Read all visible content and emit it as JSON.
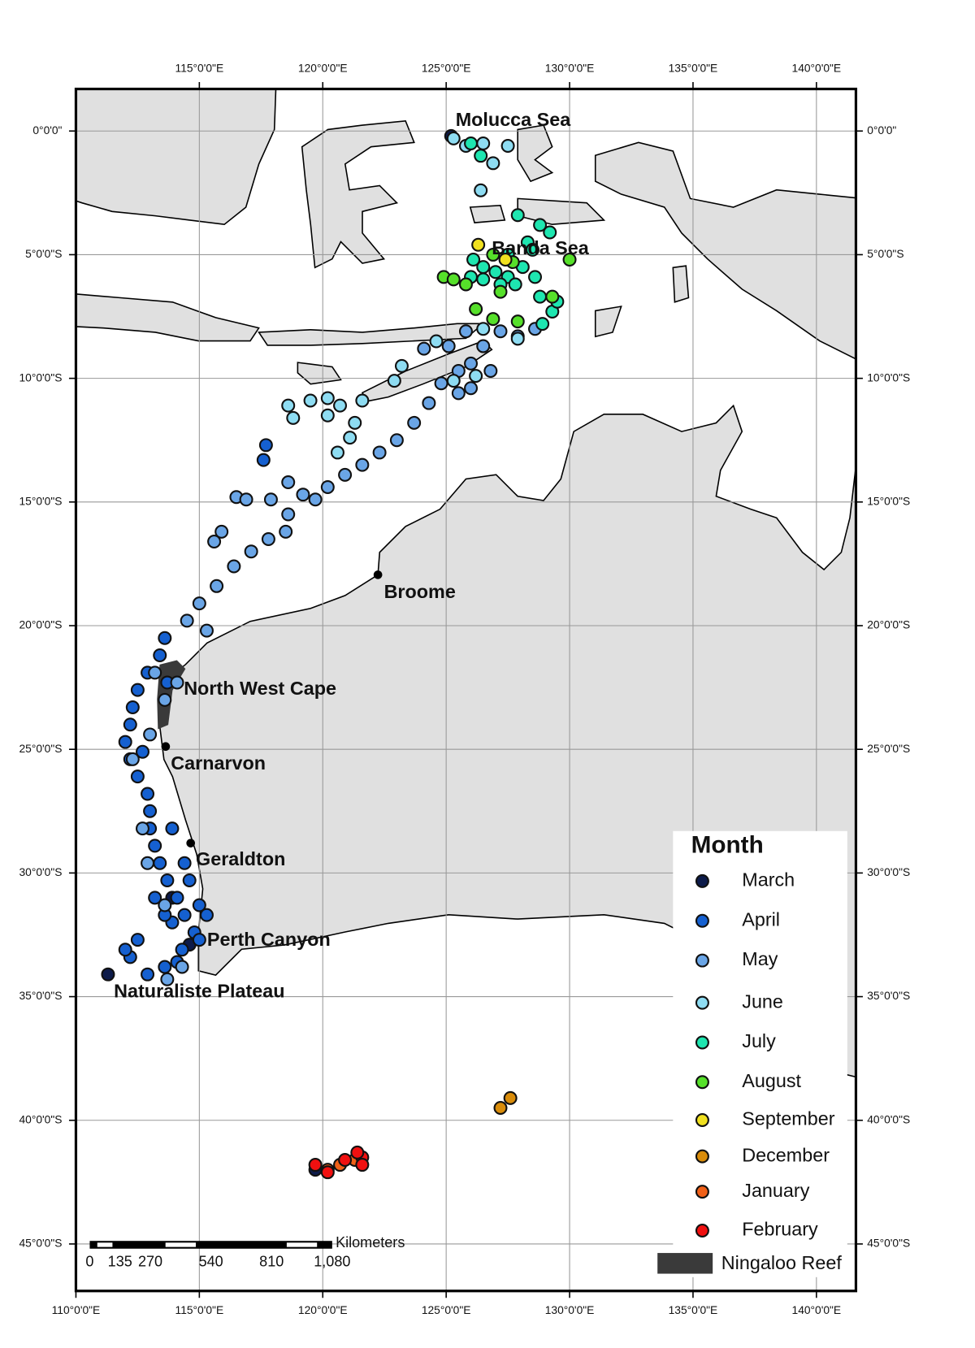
{
  "map": {
    "lon_range": [
      110,
      141.6
    ],
    "lat_range": [
      -46.9,
      1.7
    ],
    "lon_ticks": [
      {
        "value": 110,
        "label": "110°0'0\"E"
      },
      {
        "value": 115,
        "label": "115°0'0\"E"
      },
      {
        "value": 120,
        "label": "120°0'0\"E"
      },
      {
        "value": 125,
        "label": "125°0'0\"E"
      },
      {
        "value": 130,
        "label": "130°0'0\"E"
      },
      {
        "value": 135,
        "label": "135°0'0\"E"
      },
      {
        "value": 140,
        "label": "140°0'0\"E"
      }
    ],
    "lat_ticks": [
      {
        "value": 0,
        "label": "0°0'0\""
      },
      {
        "value": -5,
        "label": "5°0'0\"S"
      },
      {
        "value": -10,
        "label": "10°0'0\"S"
      },
      {
        "value": -15,
        "label": "15°0'0\"S"
      },
      {
        "value": -20,
        "label": "20°0'0\"S"
      },
      {
        "value": -25,
        "label": "25°0'0\"S"
      },
      {
        "value": -30,
        "label": "30°0'0\"S"
      },
      {
        "value": -35,
        "label": "35°0'0\"S"
      },
      {
        "value": -40,
        "label": "40°0'0\"S"
      },
      {
        "value": -45,
        "label": "45°0'0\"S"
      }
    ],
    "places": [
      "Molucca Sea",
      "Banda Sea",
      "Broome",
      "North West Cape",
      "Carnarvon",
      "Geraldton",
      "Perth Canyon",
      "Naturaliste Plateau"
    ],
    "scale_bar": {
      "unit": "Kilometers",
      "ticks": [
        {
          "value": 0,
          "label": "0"
        },
        {
          "value": 135,
          "label": "135"
        },
        {
          "value": 270,
          "label": "270"
        },
        {
          "value": 540,
          "label": "540"
        },
        {
          "value": 810,
          "label": "810"
        },
        {
          "value": 1080,
          "label": "1,080"
        }
      ]
    },
    "legend": {
      "title": "Month",
      "reef_label": "Ningaloo Reef"
    },
    "series": [
      {
        "name": "March",
        "color": "#0d1b4a",
        "points": [
          [
            111.3,
            -34.1
          ],
          [
            125.2,
            -0.2
          ],
          [
            113.9,
            -31.0
          ],
          [
            119.7,
            -42.0
          ],
          [
            114.6,
            -32.9
          ]
        ]
      },
      {
        "name": "April",
        "color": "#1560d0",
        "points": [
          [
            113.6,
            -20.5
          ],
          [
            113.4,
            -21.2
          ],
          [
            112.9,
            -21.9
          ],
          [
            112.5,
            -22.6
          ],
          [
            112.3,
            -23.3
          ],
          [
            112.2,
            -24.0
          ],
          [
            112.0,
            -24.7
          ],
          [
            112.2,
            -25.4
          ],
          [
            112.5,
            -26.1
          ],
          [
            112.9,
            -26.8
          ],
          [
            113.0,
            -27.5
          ],
          [
            113.0,
            -28.2
          ],
          [
            113.2,
            -28.9
          ],
          [
            113.4,
            -29.6
          ],
          [
            113.7,
            -30.3
          ],
          [
            114.1,
            -31.0
          ],
          [
            114.4,
            -31.7
          ],
          [
            114.8,
            -32.4
          ],
          [
            114.3,
            -33.1
          ],
          [
            113.6,
            -33.8
          ],
          [
            112.9,
            -34.1
          ],
          [
            112.2,
            -33.4
          ],
          [
            112.5,
            -32.7
          ],
          [
            113.9,
            -32.0
          ],
          [
            115.0,
            -31.3
          ],
          [
            115.3,
            -31.7
          ],
          [
            113.9,
            -28.2
          ],
          [
            114.4,
            -29.6
          ],
          [
            117.6,
            -13.3
          ],
          [
            117.7,
            -12.7
          ],
          [
            113.7,
            -22.3
          ],
          [
            112.7,
            -25.1
          ],
          [
            114.1,
            -33.6
          ],
          [
            112.0,
            -33.1
          ],
          [
            114.6,
            -30.3
          ],
          [
            115.0,
            -32.7
          ],
          [
            113.2,
            -31.0
          ],
          [
            113.6,
            -31.7
          ]
        ]
      },
      {
        "name": "May",
        "color": "#6aa5e6",
        "points": [
          [
            114.5,
            -19.8
          ],
          [
            115.0,
            -19.1
          ],
          [
            115.7,
            -18.4
          ],
          [
            116.4,
            -17.6
          ],
          [
            117.1,
            -17.0
          ],
          [
            117.8,
            -16.5
          ],
          [
            118.5,
            -16.2
          ],
          [
            115.9,
            -16.2
          ],
          [
            115.6,
            -16.6
          ],
          [
            116.5,
            -14.8
          ],
          [
            116.9,
            -14.9
          ],
          [
            117.9,
            -14.9
          ],
          [
            118.6,
            -15.5
          ],
          [
            114.1,
            -22.3
          ],
          [
            113.6,
            -23.0
          ],
          [
            113.0,
            -24.4
          ],
          [
            112.3,
            -25.4
          ],
          [
            112.7,
            -28.2
          ],
          [
            112.9,
            -29.6
          ],
          [
            113.6,
            -31.3
          ],
          [
            114.3,
            -33.8
          ],
          [
            113.7,
            -34.3
          ],
          [
            115.3,
            -20.2
          ],
          [
            113.2,
            -21.9
          ],
          [
            118.6,
            -14.2
          ],
          [
            119.2,
            -14.7
          ],
          [
            119.7,
            -14.9
          ],
          [
            120.2,
            -14.4
          ],
          [
            120.9,
            -13.9
          ],
          [
            121.6,
            -13.5
          ],
          [
            122.3,
            -13.0
          ],
          [
            123.0,
            -12.5
          ],
          [
            123.7,
            -11.8
          ],
          [
            124.3,
            -11.0
          ],
          [
            124.8,
            -10.2
          ],
          [
            125.5,
            -9.7
          ],
          [
            126.0,
            -9.4
          ],
          [
            126.5,
            -8.7
          ],
          [
            127.2,
            -8.1
          ],
          [
            127.9,
            -8.3
          ],
          [
            126.0,
            -10.4
          ],
          [
            125.5,
            -10.6
          ],
          [
            126.8,
            -9.7
          ],
          [
            125.1,
            -8.7
          ],
          [
            124.1,
            -8.8
          ],
          [
            125.8,
            -8.1
          ],
          [
            128.6,
            -8.0
          ]
        ]
      },
      {
        "name": "June",
        "color": "#8edcf2",
        "points": [
          [
            118.6,
            -11.1
          ],
          [
            118.8,
            -11.6
          ],
          [
            119.5,
            -10.9
          ],
          [
            120.2,
            -10.8
          ],
          [
            120.7,
            -11.1
          ],
          [
            121.3,
            -11.8
          ],
          [
            121.1,
            -12.4
          ],
          [
            120.6,
            -13.0
          ],
          [
            121.6,
            -10.9
          ],
          [
            122.9,
            -10.1
          ],
          [
            123.2,
            -9.5
          ],
          [
            124.6,
            -8.5
          ],
          [
            125.3,
            -0.3
          ],
          [
            125.8,
            -0.6
          ],
          [
            126.5,
            -0.5
          ],
          [
            126.9,
            -1.3
          ],
          [
            126.4,
            -2.4
          ],
          [
            127.5,
            -0.6
          ],
          [
            126.2,
            -9.9
          ],
          [
            125.3,
            -10.1
          ],
          [
            126.5,
            -8.0
          ],
          [
            127.9,
            -8.4
          ],
          [
            120.2,
            -11.5
          ]
        ]
      },
      {
        "name": "July",
        "color": "#1ee6b0",
        "points": [
          [
            126.0,
            -0.5
          ],
          [
            126.4,
            -1.0
          ],
          [
            127.9,
            -3.4
          ],
          [
            128.8,
            -3.8
          ],
          [
            129.2,
            -4.1
          ],
          [
            128.3,
            -4.5
          ],
          [
            127.5,
            -5.0
          ],
          [
            126.1,
            -5.2
          ],
          [
            126.5,
            -5.5
          ],
          [
            127.0,
            -5.7
          ],
          [
            127.5,
            -5.9
          ],
          [
            128.1,
            -5.5
          ],
          [
            128.6,
            -5.9
          ],
          [
            127.8,
            -6.2
          ],
          [
            127.2,
            -6.2
          ],
          [
            126.5,
            -6.0
          ],
          [
            128.8,
            -6.7
          ],
          [
            129.3,
            -7.3
          ],
          [
            128.9,
            -7.8
          ],
          [
            129.5,
            -6.9
          ],
          [
            128.5,
            -4.8
          ],
          [
            126.0,
            -5.9
          ]
        ]
      },
      {
        "name": "August",
        "color": "#56e02a",
        "points": [
          [
            124.9,
            -5.9
          ],
          [
            125.3,
            -6.0
          ],
          [
            125.8,
            -6.2
          ],
          [
            126.2,
            -7.2
          ],
          [
            126.9,
            -7.6
          ],
          [
            127.9,
            -7.7
          ],
          [
            126.9,
            -5.0
          ],
          [
            130.0,
            -5.2
          ],
          [
            127.7,
            -5.3
          ],
          [
            127.2,
            -6.5
          ],
          [
            129.3,
            -6.7
          ]
        ]
      },
      {
        "name": "September",
        "color": "#f0e020",
        "points": [
          [
            126.3,
            -4.6
          ],
          [
            127.4,
            -5.2
          ]
        ]
      },
      {
        "name": "December",
        "color": "#d98c0a",
        "points": [
          [
            127.6,
            -39.1
          ],
          [
            127.2,
            -39.5
          ]
        ]
      },
      {
        "name": "January",
        "color": "#f06018",
        "points": [
          [
            120.2,
            -42.0
          ],
          [
            120.7,
            -41.8
          ],
          [
            121.3,
            -41.6
          ]
        ]
      },
      {
        "name": "February",
        "color": "#f01010",
        "points": [
          [
            119.7,
            -41.8
          ],
          [
            121.6,
            -41.5
          ],
          [
            121.4,
            -41.3
          ],
          [
            121.6,
            -41.8
          ],
          [
            120.9,
            -41.6
          ],
          [
            120.2,
            -42.1
          ]
        ]
      }
    ]
  }
}
